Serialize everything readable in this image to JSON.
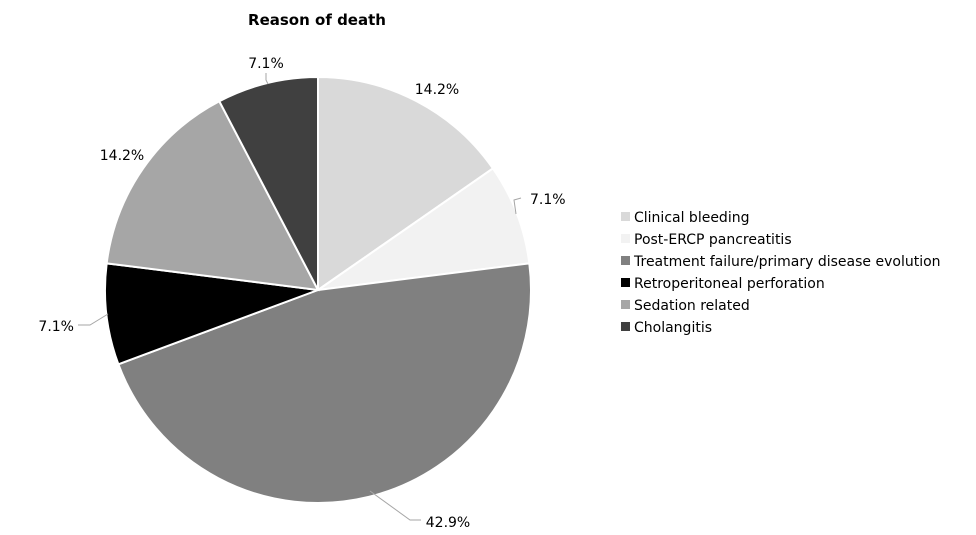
{
  "chart_data": {
    "type": "pie",
    "title": "Reason of death",
    "legend_position": "right",
    "slices": [
      {
        "name": "Clinical bleeding",
        "value": 14.2,
        "label": "14.2%",
        "color": "#d9d9d9"
      },
      {
        "name": "Post-ERCP pancreatitis",
        "value": 7.1,
        "label": "7.1%",
        "color": "#f2f2f2"
      },
      {
        "name": "Treatment failure/primary disease evolution",
        "value": 42.9,
        "label": "42.9%",
        "color": "#808080"
      },
      {
        "name": "Retroperitoneal perforation",
        "value": 7.1,
        "label": "7.1%",
        "color": "#000000"
      },
      {
        "name": "Sedation related",
        "value": 14.2,
        "label": "14.2%",
        "color": "#a6a6a6"
      },
      {
        "name": "Cholangitis",
        "value": 7.1,
        "label": "7.1%",
        "color": "#404040"
      }
    ]
  }
}
